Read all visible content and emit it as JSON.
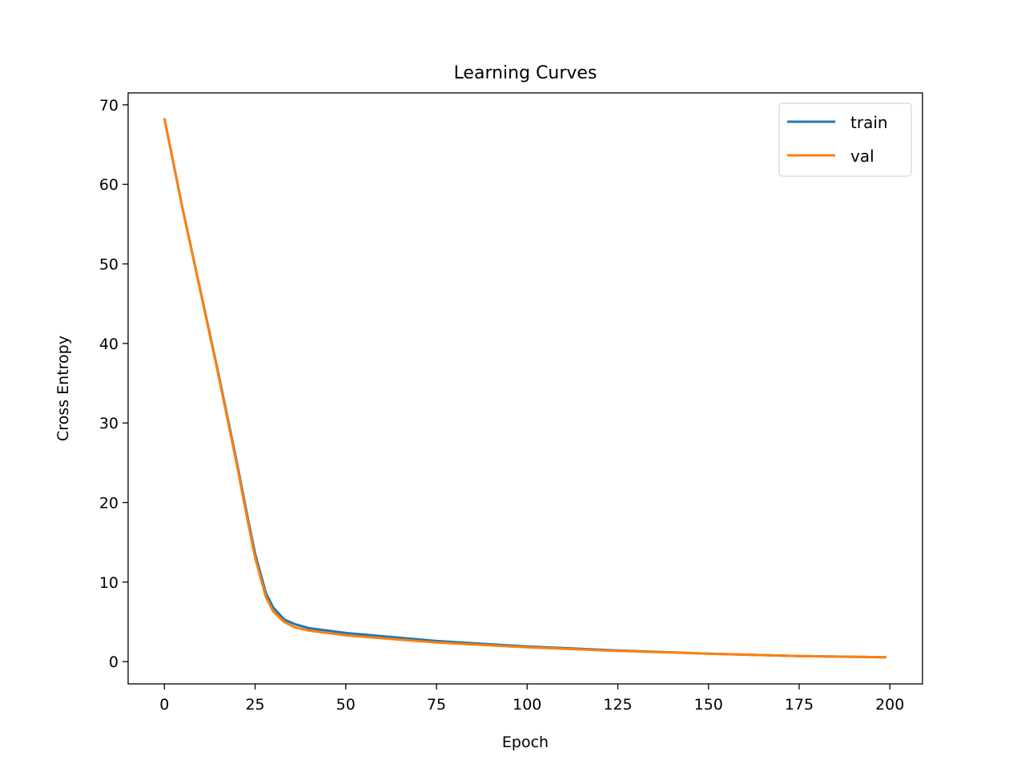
{
  "chart_data": {
    "type": "line",
    "title": "Learning Curves",
    "xlabel": "Epoch",
    "ylabel": "Cross Entropy",
    "xlim": [
      -10,
      209
    ],
    "ylim": [
      -2.8,
      71.5
    ],
    "xticks": [
      0,
      25,
      50,
      75,
      100,
      125,
      150,
      175,
      200
    ],
    "yticks": [
      0,
      10,
      20,
      30,
      40,
      50,
      60,
      70
    ],
    "grid": false,
    "legend_position": "top-right",
    "series": [
      {
        "name": "train",
        "color": "#1f77b4",
        "x": [
          0,
          5,
          10,
          15,
          20,
          23,
          25,
          28,
          30,
          33,
          36,
          40,
          50,
          75,
          100,
          125,
          150,
          175,
          199
        ],
        "y": [
          68.3,
          57,
          46.5,
          36,
          25,
          18,
          13.6,
          8.6,
          6.8,
          5.3,
          4.7,
          4.2,
          3.6,
          2.6,
          1.9,
          1.4,
          1.0,
          0.7,
          0.55
        ]
      },
      {
        "name": "val",
        "color": "#ff7f0e",
        "x": [
          0,
          5,
          10,
          15,
          20,
          23,
          25,
          28,
          30,
          33,
          36,
          40,
          50,
          75,
          100,
          125,
          150,
          175,
          199
        ],
        "y": [
          68.3,
          57,
          46.4,
          35.8,
          24.7,
          17.6,
          13.1,
          8.1,
          6.3,
          5.0,
          4.3,
          3.9,
          3.3,
          2.4,
          1.8,
          1.35,
          1.0,
          0.7,
          0.55
        ]
      }
    ]
  }
}
